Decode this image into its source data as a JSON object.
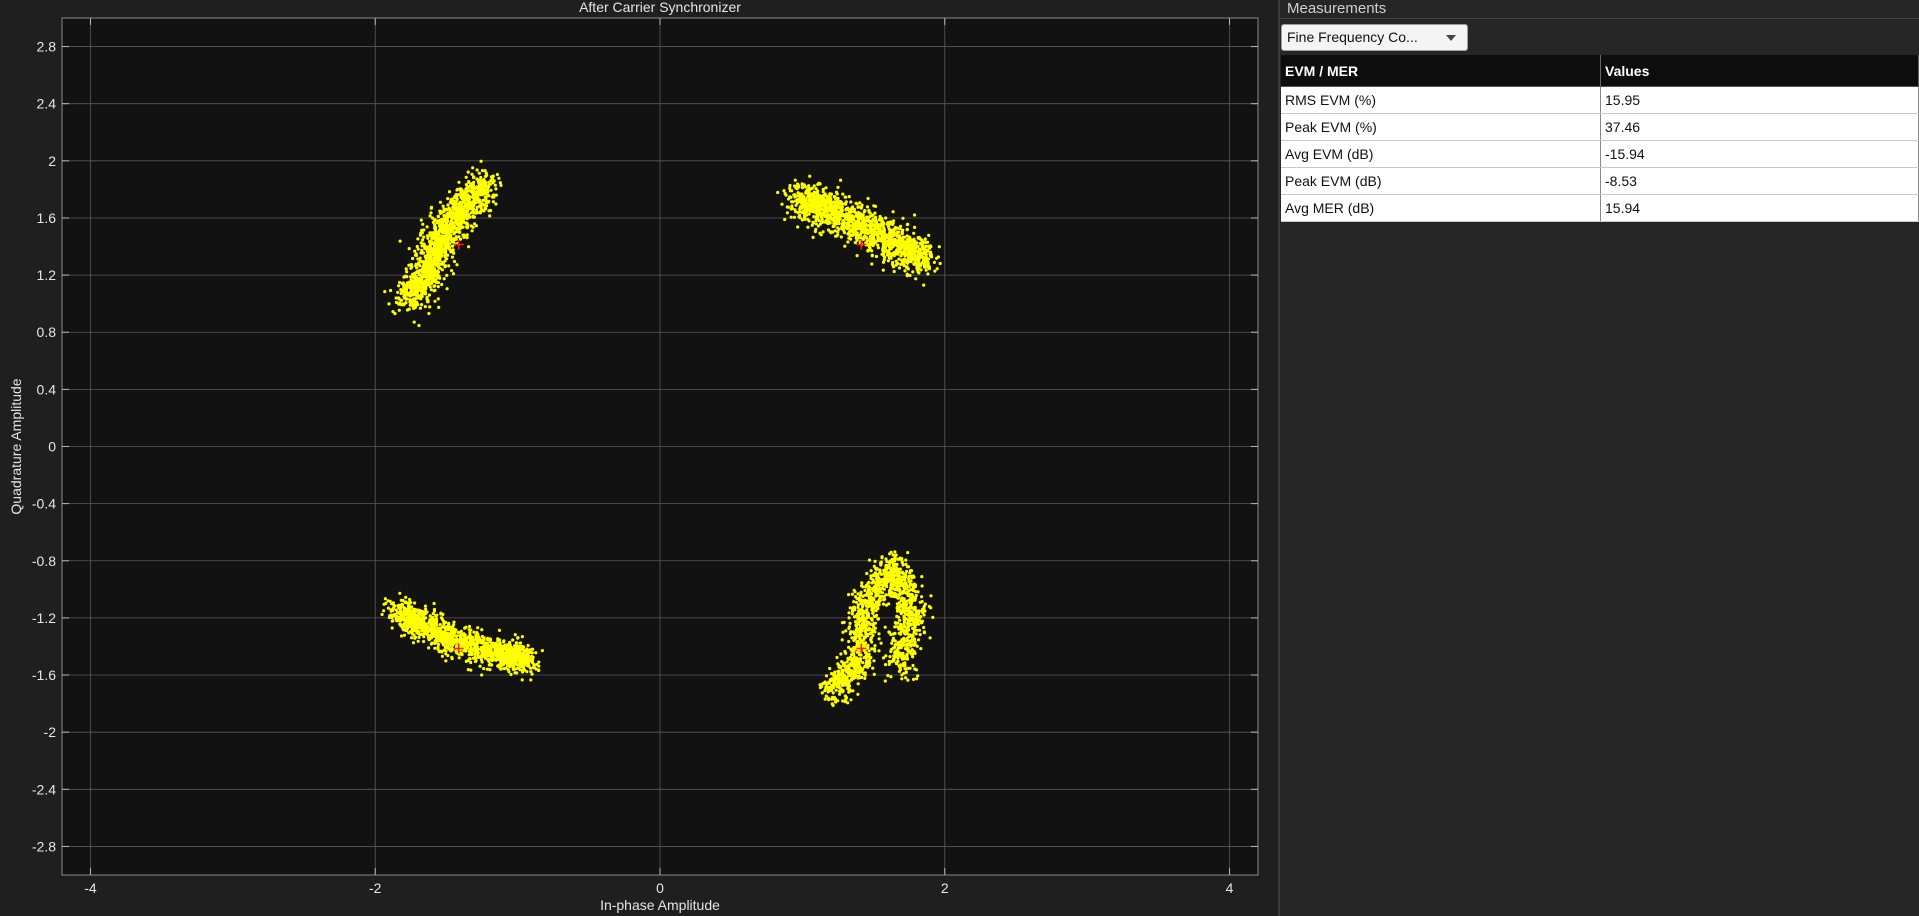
{
  "plot": {
    "title": "After Carrier Synchronizer",
    "xlabel": "In-phase Amplitude",
    "ylabel": "Quadrature Amplitude"
  },
  "chart_data": {
    "type": "scatter",
    "title": "After Carrier Synchronizer",
    "xlabel": "In-phase Amplitude",
    "ylabel": "Quadrature Amplitude",
    "xlim": [
      -4.2,
      4.2
    ],
    "ylim": [
      -3.0,
      3.0
    ],
    "x_ticks": [
      -4,
      -2,
      0,
      2,
      4
    ],
    "y_ticks": [
      -2.8,
      -2.4,
      -2,
      -1.6,
      -1.2,
      -0.8,
      -0.4,
      0,
      0.4,
      0.8,
      1.2,
      1.6,
      2,
      2.4,
      2.8
    ],
    "grid": true,
    "colors": {
      "background": "#121212",
      "grid": "#5a5a5a",
      "points": "#ffff00",
      "reference": "#ff2020",
      "text": "#e6e6e6"
    },
    "reference_constellation": [
      [
        -1.414,
        1.414
      ],
      [
        1.414,
        1.414
      ],
      [
        -1.414,
        -1.414
      ],
      [
        1.414,
        -1.414
      ]
    ],
    "point_clusters": [
      {
        "quadrant": "upper-left",
        "path": [
          [
            -1.78,
            1.02
          ],
          [
            -1.62,
            1.22
          ],
          [
            -1.55,
            1.45
          ],
          [
            -1.4,
            1.66
          ],
          [
            -1.22,
            1.83
          ]
        ],
        "spread": 0.12,
        "count": 1400
      },
      {
        "quadrant": "upper-right",
        "path": [
          [
            0.96,
            1.72
          ],
          [
            1.15,
            1.68
          ],
          [
            1.4,
            1.55
          ],
          [
            1.68,
            1.42
          ],
          [
            1.85,
            1.3
          ]
        ],
        "spread": 0.13,
        "count": 1400
      },
      {
        "quadrant": "lower-left",
        "path": [
          [
            -1.85,
            -1.15
          ],
          [
            -1.65,
            -1.25
          ],
          [
            -1.4,
            -1.38
          ],
          [
            -1.1,
            -1.45
          ],
          [
            -0.92,
            -1.5
          ]
        ],
        "spread": 0.1,
        "count": 1400
      },
      {
        "quadrant": "lower-right",
        "path": [
          [
            1.22,
            -1.72
          ],
          [
            1.4,
            -1.5
          ],
          [
            1.45,
            -1.1
          ],
          [
            1.65,
            -0.82
          ],
          [
            1.78,
            -1.2
          ],
          [
            1.68,
            -1.55
          ]
        ],
        "spread": 0.11,
        "count": 1400
      }
    ]
  },
  "measurements": {
    "title": "Measurements",
    "selector": "Fine Frequency Co...",
    "columns": [
      "EVM / MER",
      "Values"
    ],
    "rows": [
      [
        "RMS EVM (%)",
        "15.95"
      ],
      [
        "Peak EVM (%)",
        "37.46"
      ],
      [
        "Avg EVM (dB)",
        "-15.94"
      ],
      [
        "Peak EVM (dB)",
        "-8.53"
      ],
      [
        "Avg MER (dB)",
        "15.94"
      ]
    ]
  }
}
